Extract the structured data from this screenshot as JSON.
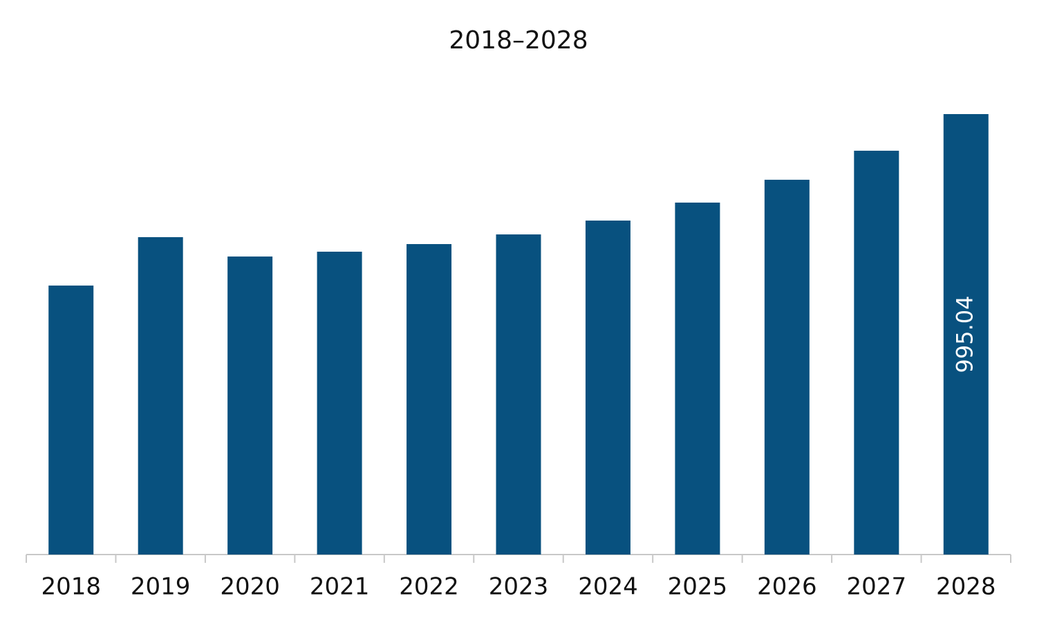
{
  "chart_data": {
    "type": "bar",
    "title": "2018–2028",
    "categories": [
      "2018",
      "2019",
      "2020",
      "2021",
      "2022",
      "2023",
      "2024",
      "2025",
      "2026",
      "2027",
      "2028"
    ],
    "values": [
      607.7,
      717.0,
      673.3,
      684.2,
      701.4,
      723.2,
      754.5,
      795.1,
      846.7,
      912.3,
      995.04
    ],
    "value_labels": [
      null,
      null,
      null,
      null,
      null,
      null,
      null,
      null,
      null,
      null,
      "995.04"
    ],
    "color": "#08517f",
    "grid": false
  }
}
